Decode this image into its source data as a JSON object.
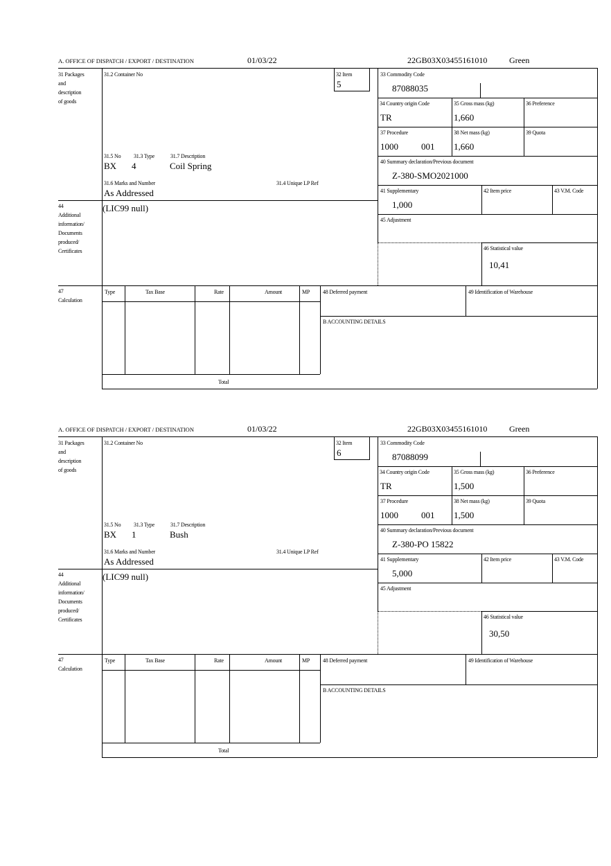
{
  "labels": {
    "office": "A.  OFFICE OF DISPATCH / EXPORT / DESTINATION",
    "box31": [
      "31 Packages",
      "and",
      "description",
      "of goods"
    ],
    "container_no": "31.2 Container No",
    "item": "32 Item",
    "no": "31.5 No",
    "type": "31.3 Type",
    "description": "31.7 Description",
    "marks": "31.6 Marks and Number",
    "unique_lp": "31.4 Unique LP Ref",
    "box44": [
      "44",
      "Additional",
      "information/",
      "Documents",
      "produced/",
      "Certificates"
    ],
    "box47": [
      "47",
      "Calculation"
    ],
    "commodity_code": "33 Commodity Code",
    "country_origin": "34 Country origin Code",
    "gross_mass": "35 Gross mass (kg)",
    "preference": "36 Preference",
    "procedure": "37 Procedure",
    "net_mass": "38 Net mass (kg)",
    "quota": "39 Quota",
    "summary_decl": "40 Summary declaration/Previous document",
    "supplementary": "41 Supplementary",
    "item_price": "42 Item price",
    "vm_code": "43 V.M. Code",
    "adjustment": "45 Adjustment",
    "statistical_value": "46 Statistical value",
    "calc_type": "Type",
    "calc_tax_base": "Tax Base",
    "calc_rate": "Rate",
    "calc_amount": "Amount",
    "calc_mp": "MP",
    "deferred_payment": "48 Deferred payment",
    "warehouse": "49 Identification of Warehouse",
    "accounting": "B ACCOUNTING DETAILS",
    "total": "Total"
  },
  "forms": [
    {
      "date": "01/03/22",
      "reference": "22GB03X03455161010",
      "route": "Green",
      "item": "5",
      "pkg_kind": "BX",
      "pkg_count": "4",
      "description": "Coil Spring",
      "marks": "As Addressed",
      "additional_info": "(LIC99 null)",
      "commodity_code": "87088035",
      "country_origin": "TR",
      "gross_mass": "1,660",
      "procedure": "1000",
      "procedure_additional": "001",
      "net_mass": "1,660",
      "summary_decl": "Z-380-SMO2021000",
      "supplementary": "1,000",
      "statistical_value": "10,41"
    },
    {
      "date": "01/03/22",
      "reference": "22GB03X03455161010",
      "route": "Green",
      "item": "6",
      "pkg_kind": "BX",
      "pkg_count": "1",
      "description": "Bush",
      "marks": "As Addressed",
      "additional_info": "(LIC99 null)",
      "commodity_code": "87088099",
      "country_origin": "TR",
      "gross_mass": "1,500",
      "procedure": "1000",
      "procedure_additional": "001",
      "net_mass": "1,500",
      "summary_decl": "Z-380-PO 15822",
      "supplementary": "5,000",
      "statistical_value": "30,50"
    }
  ]
}
